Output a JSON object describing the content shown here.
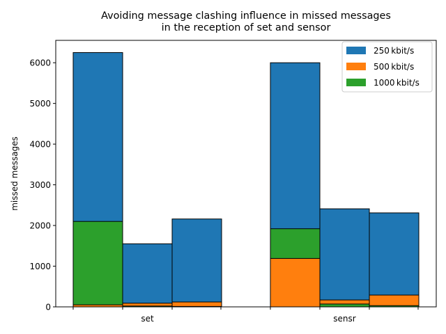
{
  "chart_data": {
    "type": "bar",
    "title_lines": [
      "Avoiding message clashing influence in missed messages",
      "in the reception of set and sensor"
    ],
    "xlabel": "",
    "ylabel": "missed messages",
    "ylim": [
      0,
      6550
    ],
    "yticks": [
      0,
      1000,
      2000,
      3000,
      4000,
      5000,
      6000
    ],
    "groups": [
      {
        "label": "set",
        "bars": [
          [
            {
              "series": "250kbit/s",
              "value": 6250
            },
            {
              "series": "1000kbit/s",
              "value": 2100
            },
            {
              "series": "500kbit/s",
              "value": 50
            }
          ],
          [
            {
              "series": "250kbit/s",
              "value": 1550
            },
            {
              "series": "500kbit/s",
              "value": 90
            },
            {
              "series": "1000kbit/s",
              "value": 20
            }
          ],
          [
            {
              "series": "250kbit/s",
              "value": 2160
            },
            {
              "series": "500kbit/s",
              "value": 120
            },
            {
              "series": "1000kbit/s",
              "value": 10
            }
          ]
        ]
      },
      {
        "label": "sensr",
        "bars": [
          [
            {
              "series": "250kbit/s",
              "value": 6000
            },
            {
              "series": "1000kbit/s",
              "value": 1920
            },
            {
              "series": "500kbit/s",
              "value": 1190
            }
          ],
          [
            {
              "series": "250kbit/s",
              "value": 2410
            },
            {
              "series": "500kbit/s",
              "value": 170
            },
            {
              "series": "1000kbit/s",
              "value": 70
            }
          ],
          [
            {
              "series": "250kbit/s",
              "value": 2310
            },
            {
              "series": "500kbit/s",
              "value": 290
            },
            {
              "series": "1000kbit/s",
              "value": 30
            }
          ]
        ]
      }
    ],
    "legend": {
      "placement": "top-right",
      "entries": [
        {
          "label": "250 kbit/s",
          "series": "250kbit/s"
        },
        {
          "label": "500 kbit/s",
          "series": "500kbit/s"
        },
        {
          "label": "1000 kbit/s",
          "series": "1000kbit/s"
        }
      ]
    },
    "colors": {
      "250kbit/s": "#1f77b4",
      "500kbit/s": "#ff7f0e",
      "1000kbit/s": "#2ca02c"
    },
    "grid": false
  }
}
